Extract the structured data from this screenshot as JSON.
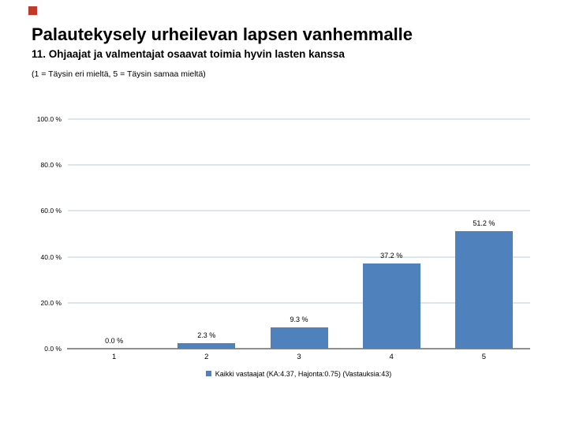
{
  "slide": {
    "title": "Palautekysely urheilevan lapsen vanhemmalle",
    "subtitle": "11. Ohjaajat ja valmentajat osaavat toimia hyvin lasten kanssa",
    "scale_note": "(1 = Täysin eri mieltä, 5 = Täysin samaa mieltä)",
    "accent_color": "#c0392b"
  },
  "chart_data": {
    "type": "bar",
    "categories": [
      "1",
      "2",
      "3",
      "4",
      "5"
    ],
    "values": [
      0.0,
      2.3,
      9.3,
      37.2,
      51.2
    ],
    "value_labels": [
      "0.0 %",
      "2.3 %",
      "9.3 %",
      "37.2 %",
      "51.2 %"
    ],
    "y_ticks": [
      {
        "value": 100,
        "label": "100.0 %"
      },
      {
        "value": 80,
        "label": "80.0 %"
      },
      {
        "value": 60,
        "label": "60.0 %"
      },
      {
        "value": 40,
        "label": "40.0 %"
      },
      {
        "value": 20,
        "label": "20.0 %"
      },
      {
        "value": 0,
        "label": "0.0 %"
      }
    ],
    "ylim": [
      0,
      100
    ],
    "grid": true,
    "title": "",
    "xlabel": "",
    "ylabel": "",
    "bar_color": "#4f81bd",
    "gridline_color": "#dde4ec",
    "axisline_color": "#8f8f8f",
    "legend": {
      "position": "bottom-center",
      "marker_color": "#4f81bd",
      "label": "Kaikki vastaajat (KA:4.37, Hajonta:0.75) (Vastauksia:43)"
    }
  }
}
